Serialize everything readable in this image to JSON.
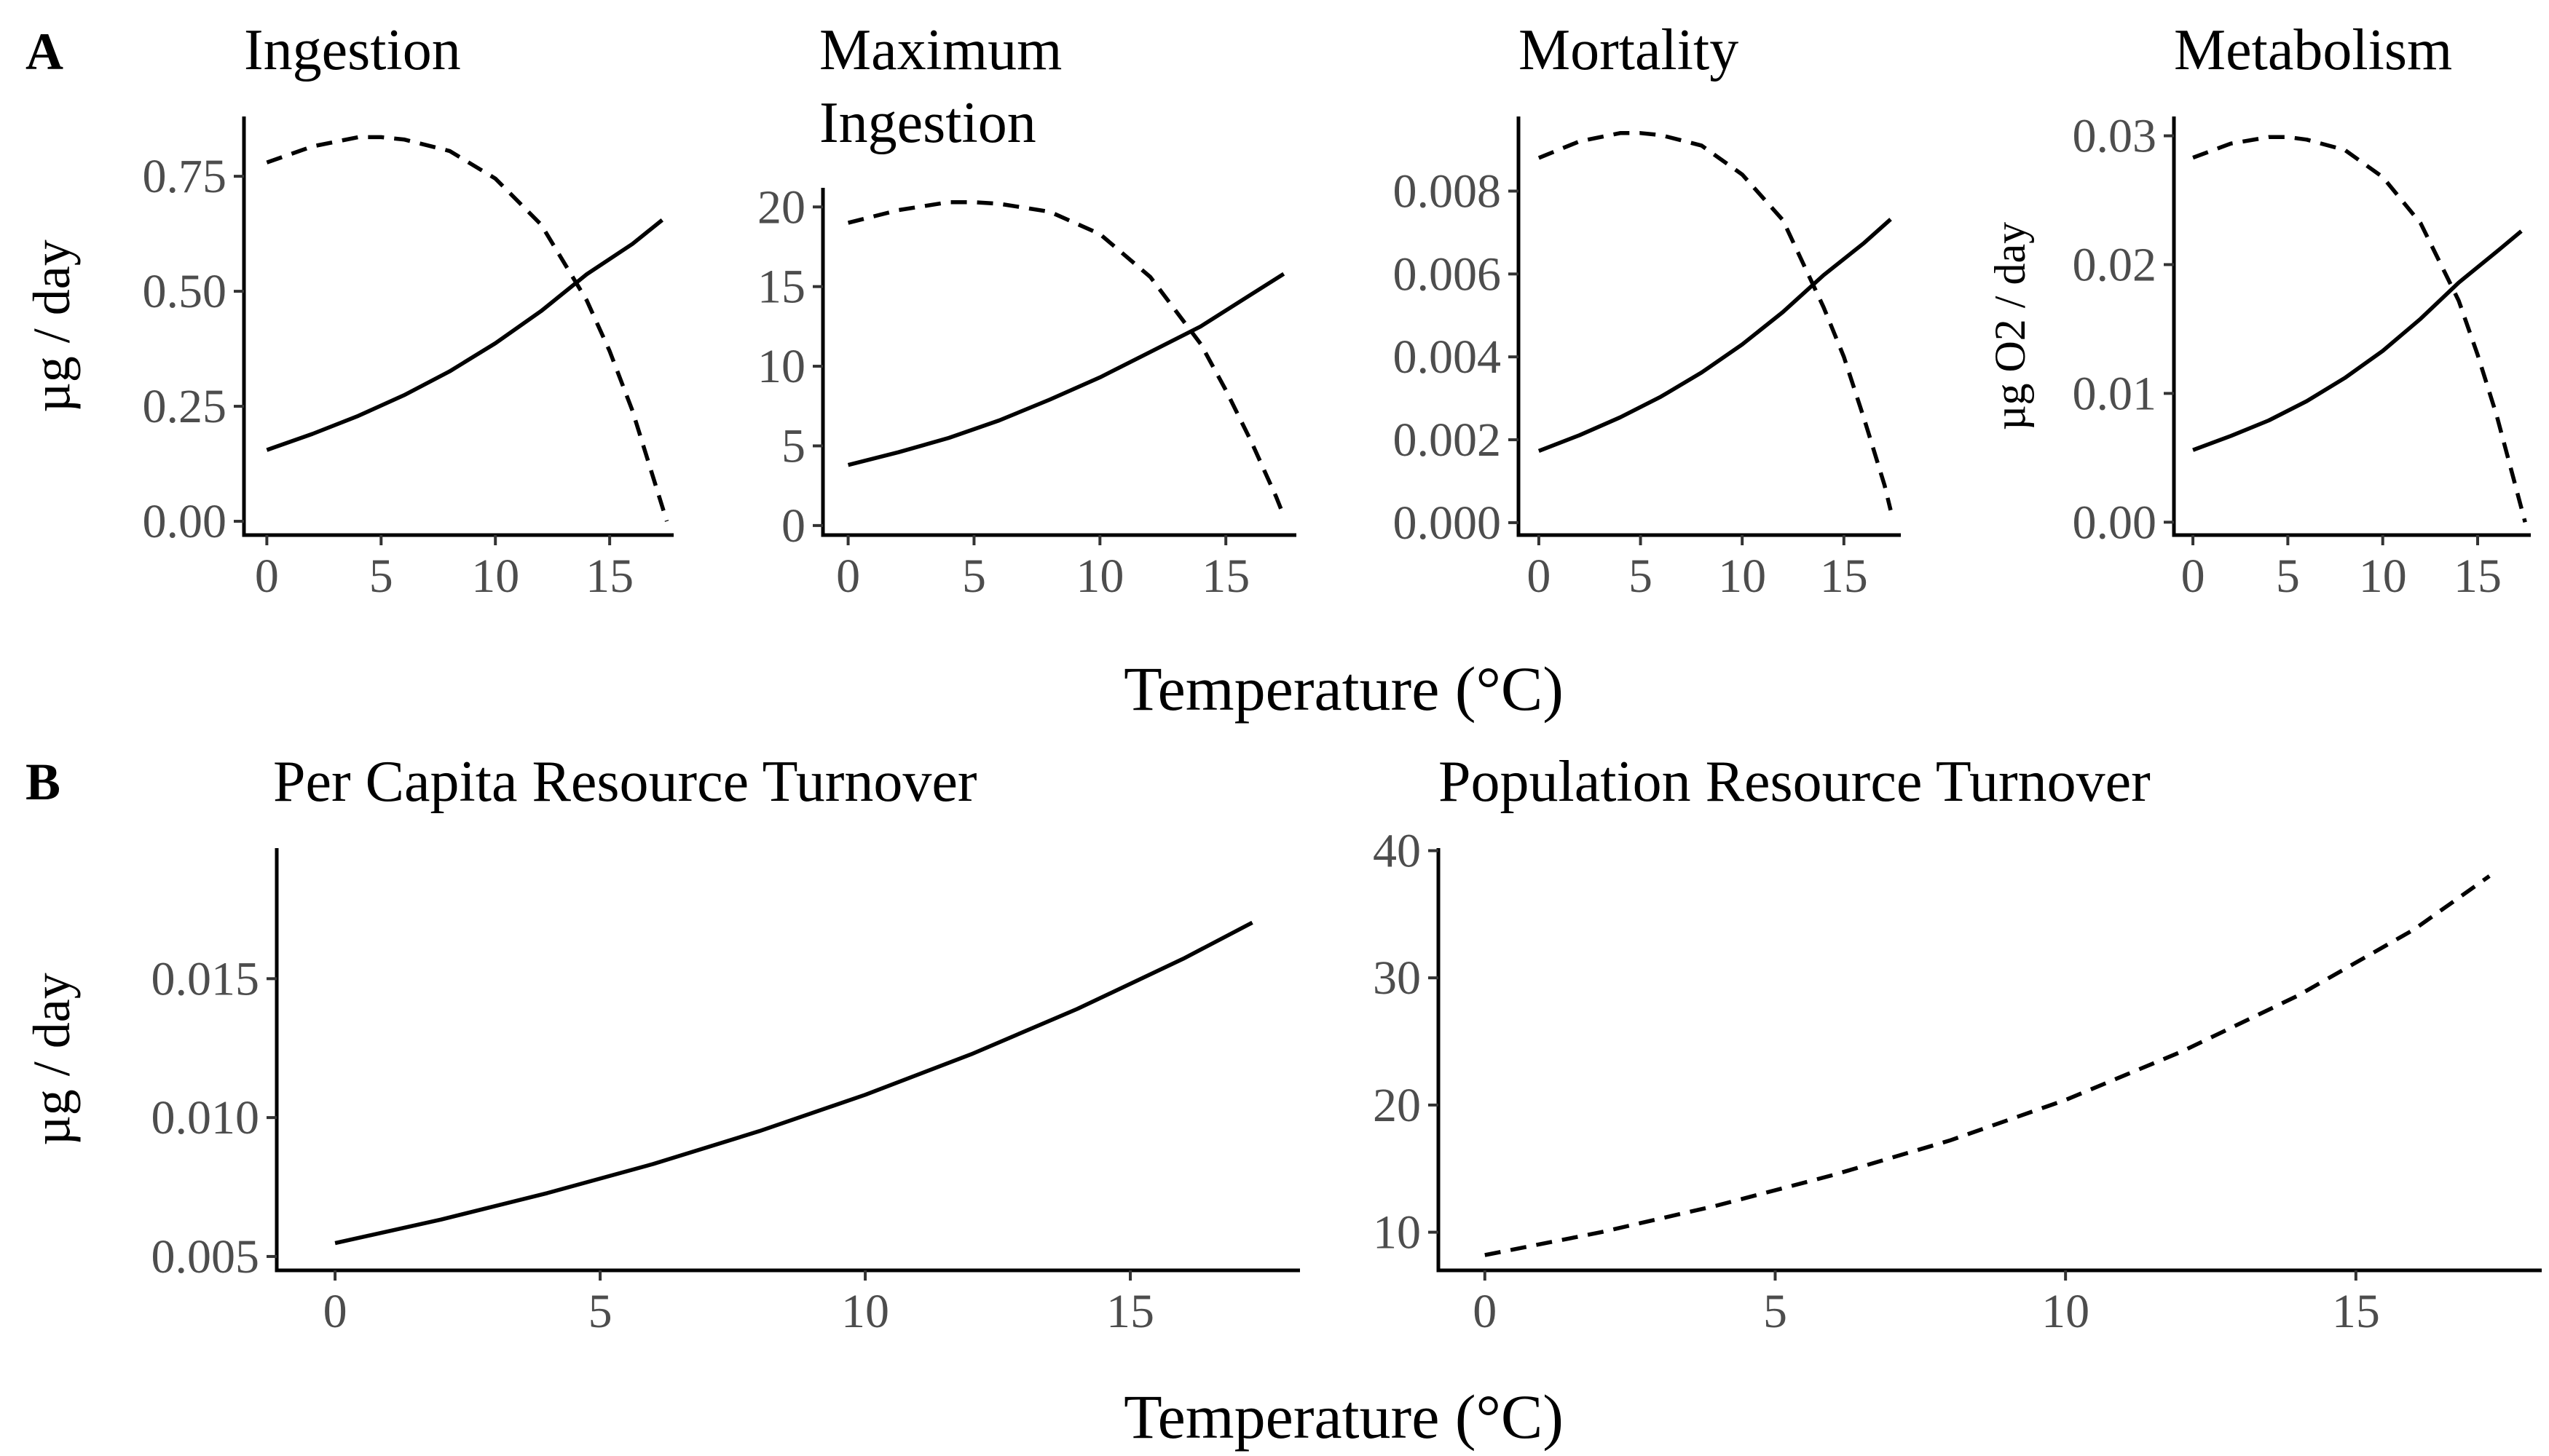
{
  "figure": {
    "panel_labels": [
      "A",
      "B"
    ],
    "xlabel_top": "Temperature (°C)",
    "xlabel_bottom": "Temperature (°C)"
  },
  "chart_data": [
    {
      "type": "line",
      "title": "Ingestion",
      "ylabel": "µg / day",
      "xlim": [
        -1,
        17.8
      ],
      "ylim": [
        -0.03,
        0.88
      ],
      "xticks": [
        0,
        5,
        10,
        15
      ],
      "yticks": [
        0.0,
        0.25,
        0.5,
        0.75
      ],
      "ytick_labels": [
        "0.00",
        "0.25",
        "0.50",
        "0.75"
      ],
      "series": [
        {
          "style": "solid",
          "x": [
            0,
            2,
            4,
            6,
            8,
            10,
            12,
            14,
            16,
            17.3
          ],
          "y": [
            0.155,
            0.19,
            0.229,
            0.274,
            0.326,
            0.387,
            0.457,
            0.537,
            0.603,
            0.655
          ]
        },
        {
          "style": "dashed",
          "x": [
            0,
            2,
            4,
            5,
            6,
            8,
            10,
            12,
            14,
            15,
            16,
            17,
            17.5
          ],
          "y": [
            0.78,
            0.815,
            0.835,
            0.835,
            0.83,
            0.805,
            0.745,
            0.645,
            0.48,
            0.37,
            0.24,
            0.08,
            0.0
          ]
        }
      ]
    },
    {
      "type": "line",
      "title": "Maximum Ingestion",
      "ylabel": "",
      "xlim": [
        -1,
        17.8
      ],
      "ylim": [
        -0.6,
        21.2
      ],
      "xticks": [
        0,
        5,
        10,
        15
      ],
      "yticks": [
        0,
        5,
        10,
        15,
        20
      ],
      "ytick_labels": [
        "0",
        "5",
        "10",
        "15",
        "20"
      ],
      "series": [
        {
          "style": "solid",
          "x": [
            0,
            2,
            4,
            6,
            8,
            10,
            12,
            14,
            16,
            17.3
          ],
          "y": [
            3.8,
            4.6,
            5.5,
            6.6,
            7.9,
            9.3,
            10.9,
            12.5,
            14.5,
            15.8
          ]
        },
        {
          "style": "dashed",
          "x": [
            0,
            2,
            4,
            5,
            6,
            8,
            10,
            12,
            14,
            15,
            16,
            17,
            17.3
          ],
          "y": [
            19.0,
            19.8,
            20.3,
            20.3,
            20.2,
            19.7,
            18.3,
            15.6,
            11.4,
            8.5,
            5.3,
            1.8,
            0.6
          ]
        }
      ]
    },
    {
      "type": "line",
      "title": "Mortality",
      "ylabel": "",
      "xlim": [
        -1,
        17.8
      ],
      "ylim": [
        -0.0003,
        0.0098
      ],
      "xticks": [
        0,
        5,
        10,
        15
      ],
      "yticks": [
        0.0,
        0.002,
        0.004,
        0.006,
        0.008
      ],
      "ytick_labels": [
        "0.000",
        "0.002",
        "0.004",
        "0.006",
        "0.008"
      ],
      "series": [
        {
          "style": "solid",
          "x": [
            0,
            2,
            4,
            6,
            8,
            10,
            12,
            14,
            16,
            17.3
          ],
          "y": [
            0.00173,
            0.00211,
            0.00254,
            0.00304,
            0.00362,
            0.0043,
            0.00508,
            0.00597,
            0.00675,
            0.00732
          ]
        },
        {
          "style": "dashed",
          "x": [
            0,
            2,
            4,
            5,
            6,
            8,
            10,
            12,
            14,
            15,
            16,
            17,
            17.3
          ],
          "y": [
            0.0088,
            0.0092,
            0.0094,
            0.0094,
            0.00935,
            0.0091,
            0.0084,
            0.0073,
            0.0052,
            0.004,
            0.0025,
            0.0009,
            0.0003
          ]
        }
      ]
    },
    {
      "type": "line",
      "title": "Metabolism",
      "ylabel": "µg O2 / day",
      "xlim": [
        -1,
        17.8
      ],
      "ylim": [
        -0.001,
        0.0315
      ],
      "xticks": [
        0,
        5,
        10,
        15
      ],
      "yticks": [
        0.0,
        0.01,
        0.02,
        0.03
      ],
      "ytick_labels": [
        "0.00",
        "0.01",
        "0.02",
        "0.03"
      ],
      "series": [
        {
          "style": "solid",
          "x": [
            0,
            2,
            4,
            6,
            8,
            10,
            12,
            14,
            16,
            17.3
          ],
          "y": [
            0.0056,
            0.0067,
            0.0079,
            0.0094,
            0.0112,
            0.0133,
            0.0158,
            0.0186,
            0.021,
            0.0226
          ]
        },
        {
          "style": "dashed",
          "x": [
            0,
            2,
            4,
            5,
            6,
            8,
            10,
            12,
            14,
            15,
            16,
            17,
            17.5
          ],
          "y": [
            0.0283,
            0.0294,
            0.0299,
            0.0299,
            0.0297,
            0.0289,
            0.0268,
            0.0232,
            0.0172,
            0.013,
            0.0083,
            0.0028,
            0.0
          ]
        }
      ]
    },
    {
      "type": "line",
      "title": "Per Capita Resource Turnover",
      "ylabel": "µg / day",
      "xlim": [
        -1.1,
        18.2
      ],
      "ylim": [
        0.0045,
        0.0197
      ],
      "xticks": [
        0,
        5,
        10,
        15
      ],
      "yticks": [
        0.005,
        0.01,
        0.015
      ],
      "ytick_labels": [
        "0.005",
        "0.010",
        "0.015"
      ],
      "series": [
        {
          "style": "solid",
          "x": [
            0,
            2,
            4,
            6,
            8,
            10,
            12,
            14,
            16,
            17.3
          ],
          "y": [
            0.00548,
            0.00633,
            0.00728,
            0.00833,
            0.00951,
            0.01082,
            0.01228,
            0.01391,
            0.01572,
            0.01702
          ]
        }
      ]
    },
    {
      "type": "line",
      "title": "Population Resource Turnover",
      "ylabel": "",
      "xlim": [
        -0.8,
        18.2
      ],
      "ylim": [
        7.0,
        40.2
      ],
      "xticks": [
        0,
        5,
        10,
        15
      ],
      "yticks": [
        10,
        20,
        30,
        40
      ],
      "ytick_labels": [
        "10",
        "20",
        "30",
        "40"
      ],
      "series": [
        {
          "style": "dashed",
          "x": [
            0,
            2,
            4,
            6,
            8,
            10,
            12,
            14,
            16,
            17.3
          ],
          "y": [
            8.2,
            10.0,
            12.1,
            14.5,
            17.2,
            20.4,
            24.2,
            28.6,
            33.8,
            38.0
          ]
        }
      ]
    }
  ]
}
